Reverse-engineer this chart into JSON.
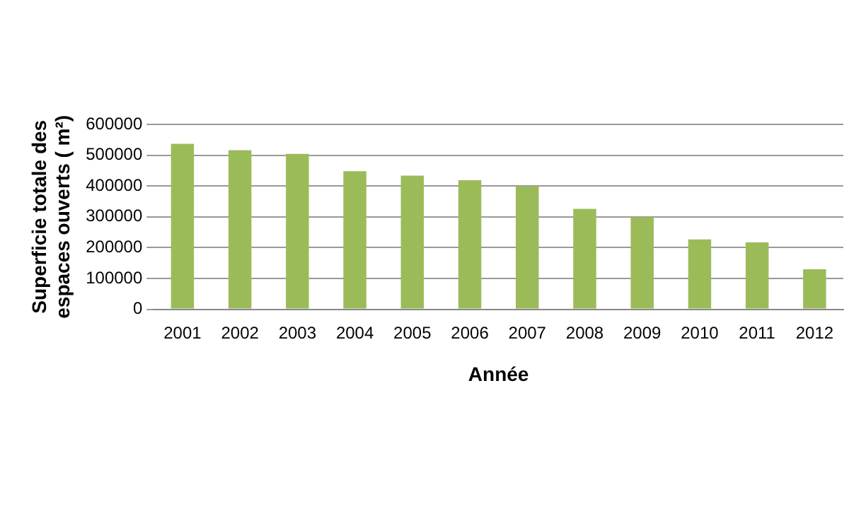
{
  "chart_data": {
    "type": "bar",
    "xlabel": "Année",
    "ylabel": "Superficie totale des\nespaces ouverts ( m²)",
    "categories": [
      "2001",
      "2002",
      "2003",
      "2004",
      "2005",
      "2006",
      "2007",
      "2008",
      "2009",
      "2010",
      "2011",
      "2012"
    ],
    "values": [
      537000,
      516000,
      504000,
      448000,
      434000,
      419000,
      400000,
      326000,
      299000,
      227000,
      217000,
      130000
    ],
    "color": "#9bbb59",
    "ylim": [
      0,
      600000
    ],
    "yticks": [
      0,
      100000,
      200000,
      300000,
      400000,
      500000,
      600000
    ],
    "grid": "y",
    "legend": false
  }
}
